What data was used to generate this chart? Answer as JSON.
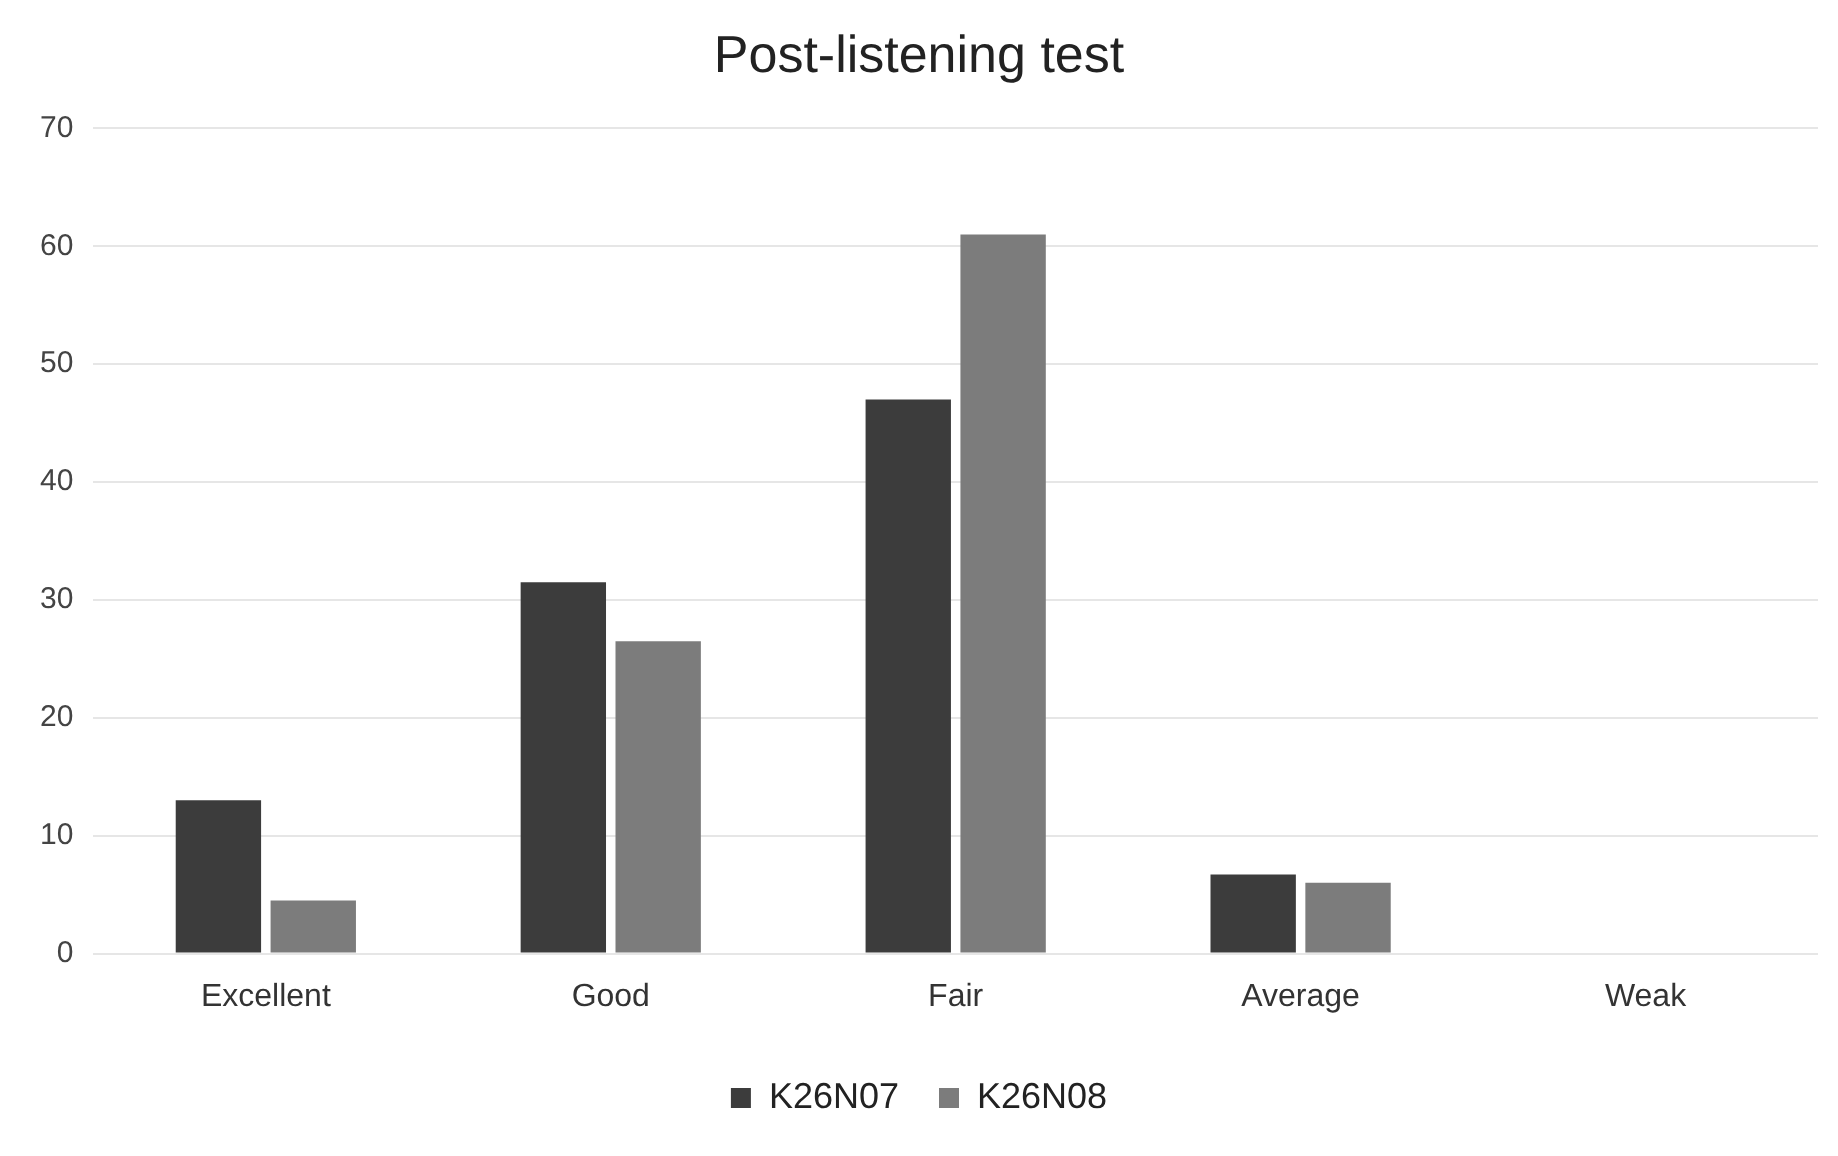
{
  "chart_data": {
    "type": "bar",
    "title": "Post-listening test",
    "categories": [
      "Excellent",
      "Good",
      "Fair",
      "Average",
      "Weak"
    ],
    "series": [
      {
        "name": "K26N07",
        "color": "#3c3c3c",
        "values": [
          13,
          31.5,
          47,
          6.7,
          0
        ]
      },
      {
        "name": "K26N08",
        "color": "#7c7c7c",
        "values": [
          4.5,
          26.5,
          61,
          6,
          0
        ]
      }
    ],
    "ylim": [
      0,
      70
    ],
    "yticks": [
      0,
      10,
      20,
      30,
      40,
      50,
      60,
      70
    ],
    "grid": "y",
    "legend": "bottom"
  }
}
